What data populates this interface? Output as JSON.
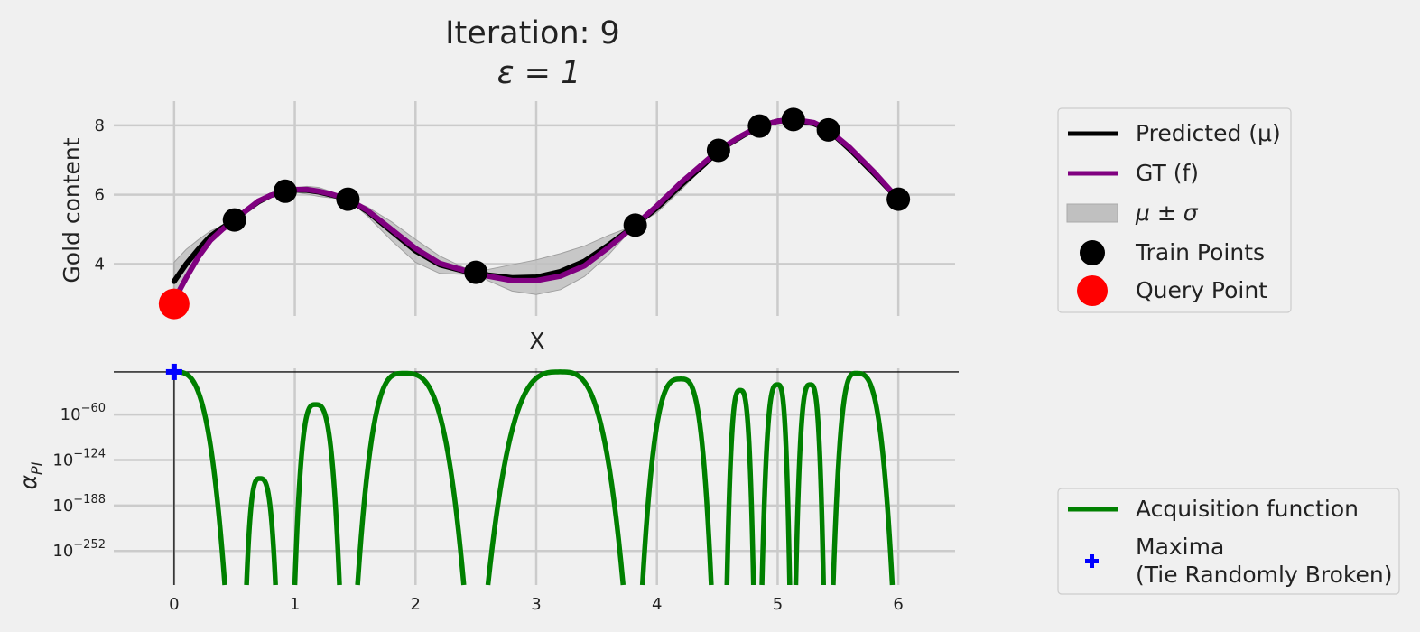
{
  "chart_data": [
    {
      "type": "line",
      "title": "Iteration: 9",
      "subtitle": "ε = 1",
      "xlabel": "X",
      "ylabel": "Gold content",
      "xlim": [
        -0.5,
        6.5
      ],
      "ylim": [
        2.5,
        8.7
      ],
      "y_ticks": [
        "4",
        "6",
        "8"
      ],
      "x_ticks": [],
      "grid": true,
      "legend_placement": "right",
      "legend": [
        "Predicted (μ)",
        "GT (f)",
        "μ ± σ",
        "Train Points",
        "Query Point"
      ],
      "colors": {
        "predicted": "#000000",
        "gt": "#800080",
        "band": "#c0c0c0",
        "train": "#000000",
        "query": "#ff0000"
      },
      "train_points": [
        {
          "x": 0.5,
          "y": 5.27
        },
        {
          "x": 0.92,
          "y": 6.1
        },
        {
          "x": 1.44,
          "y": 5.87
        },
        {
          "x": 2.5,
          "y": 3.76
        },
        {
          "x": 3.82,
          "y": 5.12
        },
        {
          "x": 4.51,
          "y": 7.28
        },
        {
          "x": 4.85,
          "y": 7.98
        },
        {
          "x": 5.13,
          "y": 8.17
        },
        {
          "x": 5.42,
          "y": 7.87
        },
        {
          "x": 6.0,
          "y": 5.87
        }
      ],
      "query_point": {
        "x": 0.0,
        "y": 2.85
      },
      "gt_curve": {
        "x": [
          0,
          0.1,
          0.2,
          0.3,
          0.4,
          0.5,
          0.6,
          0.7,
          0.8,
          0.92,
          1.0,
          1.1,
          1.2,
          1.3,
          1.44,
          1.6,
          1.8,
          2.0,
          2.2,
          2.4,
          2.5,
          2.6,
          2.8,
          3.0,
          3.2,
          3.4,
          3.6,
          3.82,
          4.0,
          4.2,
          4.4,
          4.51,
          4.7,
          4.85,
          5.0,
          5.13,
          5.3,
          5.42,
          5.6,
          5.8,
          6.0
        ],
        "y": [
          2.95,
          3.6,
          4.2,
          4.68,
          5.0,
          5.27,
          5.55,
          5.82,
          5.98,
          6.1,
          6.15,
          6.15,
          6.1,
          6.02,
          5.87,
          5.55,
          5.0,
          4.45,
          4.02,
          3.82,
          3.76,
          3.65,
          3.52,
          3.52,
          3.65,
          3.95,
          4.48,
          5.12,
          5.68,
          6.35,
          6.95,
          7.28,
          7.7,
          7.98,
          8.12,
          8.17,
          8.08,
          7.87,
          7.35,
          6.65,
          5.87
        ]
      },
      "predicted_curve": {
        "x": [
          0,
          0.1,
          0.2,
          0.3,
          0.4,
          0.5,
          0.6,
          0.7,
          0.8,
          0.92,
          1.0,
          1.1,
          1.2,
          1.3,
          1.44,
          1.6,
          1.8,
          2.0,
          2.2,
          2.4,
          2.5,
          2.6,
          2.8,
          3.0,
          3.2,
          3.4,
          3.6,
          3.82,
          4.0,
          4.2,
          4.4,
          4.51,
          4.7,
          4.85,
          5.0,
          5.13,
          5.3,
          5.42,
          5.6,
          5.8,
          6.0
        ],
        "y": [
          3.5,
          4.0,
          4.42,
          4.8,
          5.05,
          5.27,
          5.55,
          5.8,
          5.98,
          6.1,
          6.14,
          6.13,
          6.08,
          6.0,
          5.87,
          5.52,
          4.95,
          4.38,
          3.98,
          3.8,
          3.76,
          3.68,
          3.6,
          3.62,
          3.78,
          4.08,
          4.55,
          5.12,
          5.62,
          6.28,
          6.9,
          7.28,
          7.68,
          7.98,
          8.12,
          8.17,
          8.05,
          7.87,
          7.3,
          6.6,
          5.87
        ]
      },
      "sigma": [
        0.55,
        0.42,
        0.28,
        0.15,
        0.06,
        0,
        0.05,
        0.07,
        0.04,
        0,
        0.06,
        0.11,
        0.13,
        0.09,
        0,
        0.13,
        0.27,
        0.33,
        0.25,
        0.1,
        0,
        0.16,
        0.38,
        0.5,
        0.52,
        0.44,
        0.28,
        0,
        0.14,
        0.14,
        0.06,
        0,
        0.04,
        0,
        0.03,
        0,
        0.03,
        0,
        0.08,
        0.08,
        0
      ]
    },
    {
      "type": "line",
      "xlabel": "",
      "ylabel": "α_PI",
      "y_scale": "log",
      "xlim": [
        -0.5,
        6.5
      ],
      "x_ticks": [
        "0",
        "1",
        "2",
        "3",
        "4",
        "5",
        "6"
      ],
      "y_ticks": [
        {
          "base": "10",
          "exp": "−60"
        },
        {
          "base": "10",
          "exp": "−124"
        },
        {
          "base": "10",
          "exp": "−188"
        },
        {
          "base": "10",
          "exp": "−252"
        }
      ],
      "y_tick_values_log10": [
        -60,
        -124,
        -188,
        -252
      ],
      "ylim_log10": [
        -300,
        5
      ],
      "grid": true,
      "legend_placement": "right",
      "legend": [
        "Acquisition function",
        "Maxima\n(Tie Randomly Broken)"
      ],
      "colors": {
        "acquisition": "#008000",
        "maxima": "#0000ff"
      },
      "maxima": {
        "x": 0.0,
        "log10_y": 0
      },
      "acquisition_lobes": [
        {
          "start": 0.0,
          "end": 0.42,
          "peak_x": 0.0,
          "peak_log10": 0
        },
        {
          "start": 0.6,
          "end": 0.84,
          "peak_x": 0.71,
          "peak_log10": -150
        },
        {
          "start": 1.0,
          "end": 1.37,
          "peak_x": 1.17,
          "peak_log10": -46
        },
        {
          "start": 1.52,
          "end": 2.4,
          "peak_x": 1.9,
          "peak_log10": -2
        },
        {
          "start": 2.6,
          "end": 3.72,
          "peak_x": 3.2,
          "peak_log10": 0
        },
        {
          "start": 3.88,
          "end": 4.45,
          "peak_x": 4.2,
          "peak_log10": -10
        },
        {
          "start": 4.58,
          "end": 4.8,
          "peak_x": 4.69,
          "peak_log10": -26
        },
        {
          "start": 4.87,
          "end": 5.1,
          "peak_x": 5.0,
          "peak_log10": -18
        },
        {
          "start": 5.15,
          "end": 5.38,
          "peak_x": 5.27,
          "peak_log10": -18
        },
        {
          "start": 5.46,
          "end": 5.95,
          "peak_x": 5.65,
          "peak_log10": -2
        }
      ]
    }
  ]
}
